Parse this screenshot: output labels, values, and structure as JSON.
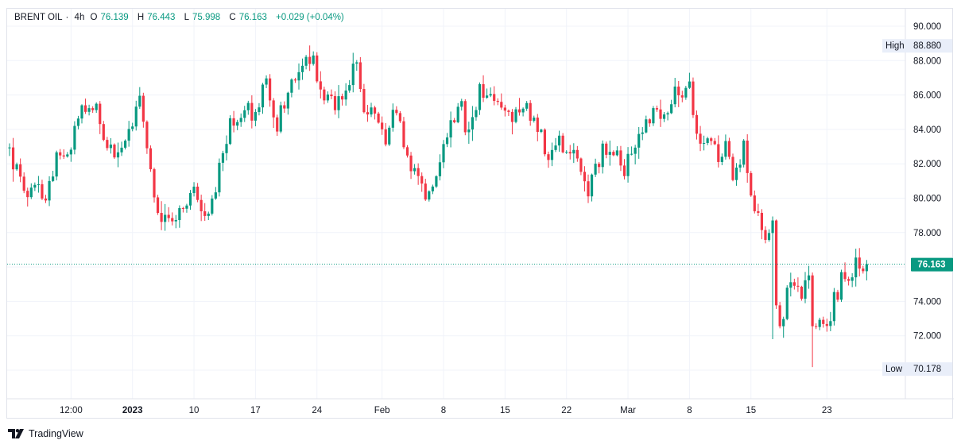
{
  "legend": {
    "symbol": "BRENT OIL",
    "interval": "4h",
    "open_label": "O",
    "open": "76.139",
    "high_label": "H",
    "high": "76.443",
    "low_label": "L",
    "low": "75.998",
    "close_label": "C",
    "close": "76.163",
    "change": "+0.029 (+0.04%)"
  },
  "watermark": "TradingView",
  "colors": {
    "up": "#089981",
    "down": "#f23645",
    "grid": "#f0f3fa",
    "axis_text": "#131722",
    "tag_bg": "#e9eef9",
    "price_tag": "#089981"
  },
  "chart_data": {
    "type": "candlestick",
    "title": "BRENT OIL, 4h",
    "y_ticks": [
      "90.000",
      "88.000",
      "86.000",
      "84.000",
      "82.000",
      "80.000",
      "78.000",
      "74.000",
      "72.000"
    ],
    "ylim": [
      69.3,
      91.2
    ],
    "x_ticks": [
      {
        "label": "12:00",
        "bar": 17
      },
      {
        "label": "2023",
        "bar": 34,
        "bold": true
      },
      {
        "label": "10",
        "bar": 51
      },
      {
        "label": "17",
        "bar": 68
      },
      {
        "label": "24",
        "bar": 85
      },
      {
        "label": "Feb",
        "bar": 103
      },
      {
        "label": "8",
        "bar": 120
      },
      {
        "label": "15",
        "bar": 137
      },
      {
        "label": "22",
        "bar": 154
      },
      {
        "label": "Mar",
        "bar": 171
      },
      {
        "label": "8",
        "bar": 188
      },
      {
        "label": "15",
        "bar": 205
      },
      {
        "label": "23",
        "bar": 226
      }
    ],
    "high_marker": {
      "label": "High",
      "value": "88.880",
      "price": 88.88
    },
    "low_marker": {
      "label": "Low",
      "value": "70.178",
      "price": 70.178
    },
    "last_price": {
      "value": "76.163",
      "price": 76.163
    },
    "anchors": [
      [
        0,
        82.9
      ],
      [
        4,
        80.0
      ],
      [
        8,
        80.5
      ],
      [
        10,
        80.3
      ],
      [
        14,
        82.8
      ],
      [
        17,
        83.2
      ],
      [
        20,
        85.4
      ],
      [
        24,
        85.6
      ],
      [
        26,
        83.8
      ],
      [
        29,
        82.5
      ],
      [
        33,
        84.0
      ],
      [
        36,
        85.5
      ],
      [
        38,
        83.0
      ],
      [
        40,
        80.5
      ],
      [
        42,
        78.5
      ],
      [
        45,
        78.8
      ],
      [
        48,
        79.2
      ],
      [
        51,
        80.5
      ],
      [
        54,
        79.0
      ],
      [
        56,
        79.5
      ],
      [
        58,
        82.0
      ],
      [
        61,
        84.5
      ],
      [
        64,
        85.2
      ],
      [
        68,
        85.0
      ],
      [
        71,
        86.8
      ],
      [
        74,
        84.2
      ],
      [
        77,
        86.5
      ],
      [
        80,
        87.6
      ],
      [
        83,
        88.3
      ],
      [
        85,
        87.2
      ],
      [
        87,
        85.9
      ],
      [
        90,
        85.6
      ],
      [
        93,
        86.6
      ],
      [
        96,
        87.8
      ],
      [
        98,
        85.5
      ],
      [
        101,
        84.5
      ],
      [
        104,
        83.6
      ],
      [
        107,
        85.3
      ],
      [
        109,
        83.3
      ],
      [
        111,
        82.0
      ],
      [
        113,
        81.5
      ],
      [
        115,
        80.2
      ],
      [
        117,
        80.6
      ],
      [
        119,
        82.6
      ],
      [
        122,
        84.4
      ],
      [
        125,
        85.2
      ],
      [
        127,
        83.5
      ],
      [
        130,
        86.5
      ],
      [
        133,
        86.0
      ],
      [
        136,
        85.6
      ],
      [
        139,
        84.6
      ],
      [
        142,
        85.5
      ],
      [
        145,
        84.6
      ],
      [
        147,
        83.6
      ],
      [
        149,
        82.3
      ],
      [
        152,
        83.2
      ],
      [
        155,
        82.9
      ],
      [
        158,
        81.8
      ],
      [
        160,
        80.6
      ],
      [
        162,
        81.9
      ],
      [
        165,
        83.0
      ],
      [
        168,
        82.9
      ],
      [
        170,
        81.5
      ],
      [
        173,
        83.1
      ],
      [
        175,
        84.0
      ],
      [
        177,
        84.3
      ],
      [
        179,
        85.2
      ],
      [
        181,
        84.8
      ],
      [
        184,
        86.2
      ],
      [
        186,
        85.5
      ],
      [
        188,
        86.3
      ],
      [
        190,
        84.0
      ],
      [
        193,
        83.0
      ],
      [
        196,
        82.5
      ],
      [
        198,
        82.8
      ],
      [
        200,
        81.2
      ],
      [
        203,
        83.1
      ],
      [
        205,
        80.5
      ],
      [
        207,
        78.8
      ],
      [
        209,
        77.5
      ],
      [
        211,
        78.5
      ],
      [
        212,
        73.5
      ],
      [
        213,
        72.2
      ],
      [
        215,
        74.3
      ],
      [
        217,
        75.3
      ],
      [
        219,
        74.6
      ],
      [
        221,
        75.5
      ],
      [
        222,
        72.5
      ],
      [
        224,
        73.0
      ],
      [
        226,
        72.4
      ],
      [
        228,
        74.0
      ],
      [
        230,
        75.2
      ],
      [
        232,
        74.8
      ],
      [
        234,
        76.3
      ],
      [
        236,
        76.3
      ],
      [
        237,
        76.163
      ]
    ]
  }
}
